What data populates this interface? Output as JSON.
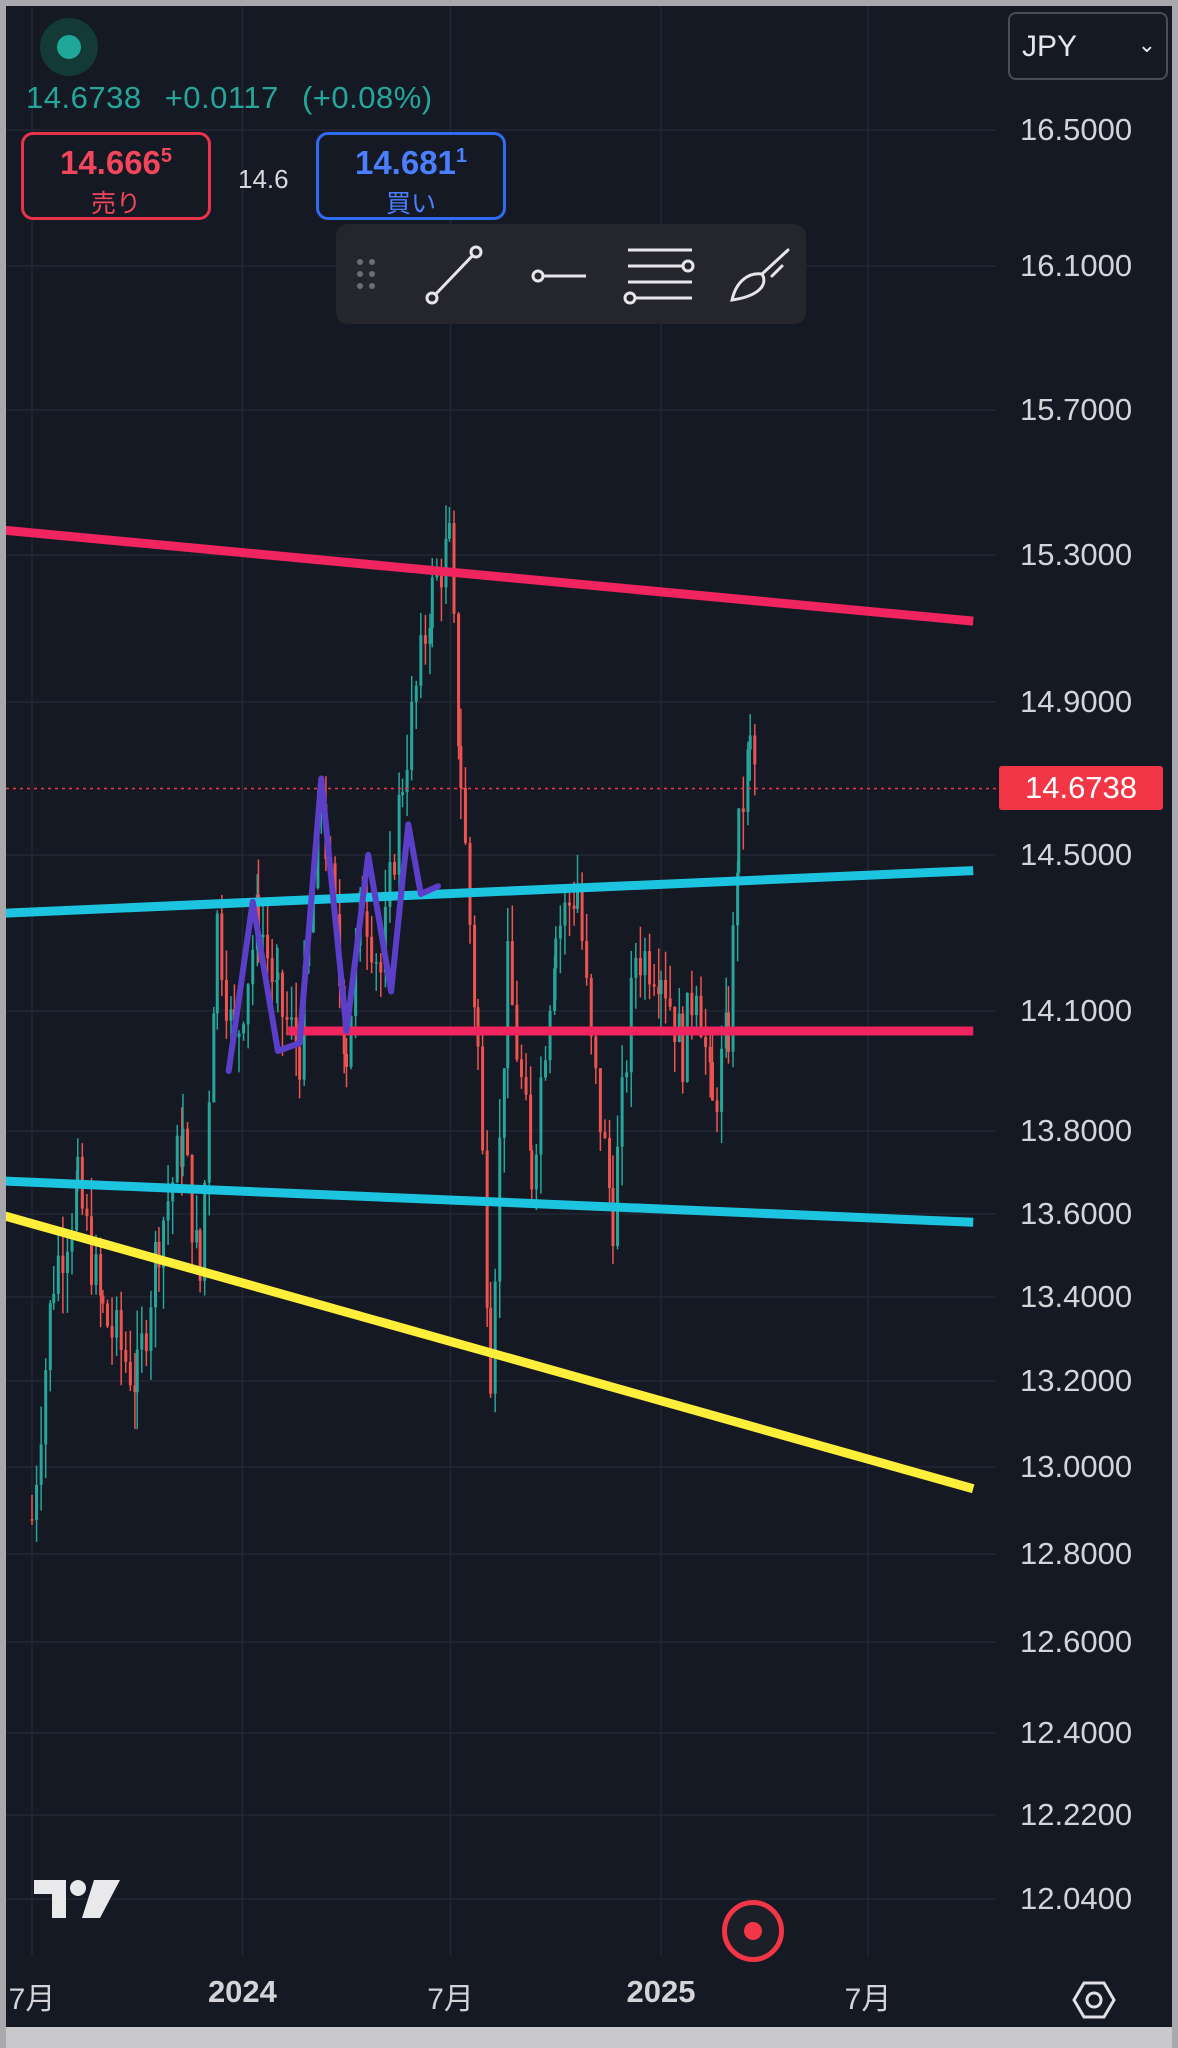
{
  "header": {
    "last_price": "14.6738",
    "change": "+0.0117",
    "change_pct": "(+0.08%)"
  },
  "trade": {
    "sell_main": "14.666",
    "sell_sup": "5",
    "sell_label": "売り",
    "spread": "14.6",
    "buy_main": "14.681",
    "buy_sup": "1",
    "buy_label": "買い"
  },
  "toolbar": {
    "tools": [
      "grip-icon",
      "trend-line-icon",
      "horizontal-ray-icon",
      "fib-levels-icon",
      "brush-icon"
    ]
  },
  "currency": {
    "value": "JPY"
  },
  "colors": {
    "background": "#151924",
    "up": "#26a69a",
    "down": "#ef5350",
    "resistance": "#f0245f",
    "channel": "#1cc4e0",
    "trend_yellow": "#ffee3a",
    "freehand": "#5b3fc8"
  },
  "chart_data": {
    "type": "candlestick",
    "symbol_hint": "EURJPY",
    "y_tick_labels": [
      "16.5000",
      "16.1000",
      "15.7000",
      "15.3000",
      "14.9000",
      "14.5000",
      "14.1000",
      "13.8000",
      "13.6000",
      "13.4000",
      "13.2000",
      "13.0000",
      "12.8000",
      "12.6000",
      "12.4000",
      "12.2200",
      "12.0400"
    ],
    "x_tick_labels": [
      {
        "label": "7月",
        "date": "2023-07"
      },
      {
        "label": "2024",
        "date": "2024-01"
      },
      {
        "label": "7月",
        "date": "2024-07"
      },
      {
        "label": "2025",
        "date": "2025-01"
      },
      {
        "label": "7月",
        "date": "2025-07"
      }
    ],
    "current_price": "14.6738",
    "price_path": [
      [
        "2023-07",
        12.88
      ],
      [
        "2023-07-20",
        13.45
      ],
      [
        "2023-08-10",
        13.66
      ],
      [
        "2023-09",
        13.36
      ],
      [
        "2023-10",
        13.2
      ],
      [
        "2023-10-20",
        13.55
      ],
      [
        "2023-11-10",
        13.78
      ],
      [
        "2023-11-25",
        13.44
      ],
      [
        "2023-12-10",
        14.33
      ],
      [
        "2023-12-25",
        14.0
      ],
      [
        "2024-01-15",
        14.35
      ],
      [
        "2024-02",
        14.12
      ],
      [
        "2024-02-20",
        14.0
      ],
      [
        "2024-03-10",
        14.65
      ],
      [
        "2024-04",
        14.0
      ],
      [
        "2024-04-15",
        14.4
      ],
      [
        "2024-05",
        14.2
      ],
      [
        "2024-05-20",
        14.7
      ],
      [
        "2024-06-15",
        15.2
      ],
      [
        "2024-06-30",
        15.33
      ],
      [
        "2024-07-10",
        14.7
      ],
      [
        "2024-07-25",
        14.0
      ],
      [
        "2024-08-05",
        13.25
      ],
      [
        "2024-08-20",
        14.2
      ],
      [
        "2024-09-10",
        13.7
      ],
      [
        "2024-10",
        14.3
      ],
      [
        "2024-10-20",
        14.42
      ],
      [
        "2024-11",
        14.0
      ],
      [
        "2024-11-20",
        13.6
      ],
      [
        "2024-12-10",
        14.25
      ],
      [
        "2025-01",
        14.22
      ],
      [
        "2025-01-20",
        14.0
      ],
      [
        "2025-02",
        14.2
      ],
      [
        "2025-02-15",
        13.85
      ],
      [
        "2025-03",
        14.05
      ],
      [
        "2025-03-10",
        14.55
      ],
      [
        "2025-03-20",
        14.78
      ],
      [
        "2025-03-28",
        14.6738
      ]
    ],
    "lines": [
      {
        "name": "upper-resistance",
        "color": "#f0245f",
        "from": [
          "2023-06",
          15.37
        ],
        "to": [
          "2025-10",
          15.12
        ]
      },
      {
        "name": "upper-channel",
        "color": "#1cc4e0",
        "from": [
          "2023-06",
          14.35
        ],
        "to": [
          "2025-10",
          14.46
        ]
      },
      {
        "name": "support-horizontal",
        "color": "#f0245f",
        "from": [
          "2024-02-10",
          14.05
        ],
        "to": [
          "2025-10",
          14.05
        ]
      },
      {
        "name": "lower-channel",
        "color": "#1cc4e0",
        "from": [
          "2023-06",
          13.68
        ],
        "to": [
          "2025-10",
          13.58
        ]
      },
      {
        "name": "lower-trend",
        "color": "#ffee3a",
        "from": [
          "2023-06",
          13.6
        ],
        "to": [
          "2025-10",
          12.95
        ]
      }
    ],
    "freehand": [
      [
        "2023-12-20",
        13.95
      ],
      [
        "2024-01-10",
        14.38
      ],
      [
        "2024-02",
        14.0
      ],
      [
        "2024-02-20",
        14.02
      ],
      [
        "2024-03-10",
        14.7
      ],
      [
        "2024-04",
        14.05
      ],
      [
        "2024-04-20",
        14.5
      ],
      [
        "2024-05-10",
        14.15
      ],
      [
        "2024-05-25",
        14.58
      ],
      [
        "2024-06-05",
        14.4
      ],
      [
        "2024-06-20",
        14.42
      ]
    ],
    "grid": true
  }
}
